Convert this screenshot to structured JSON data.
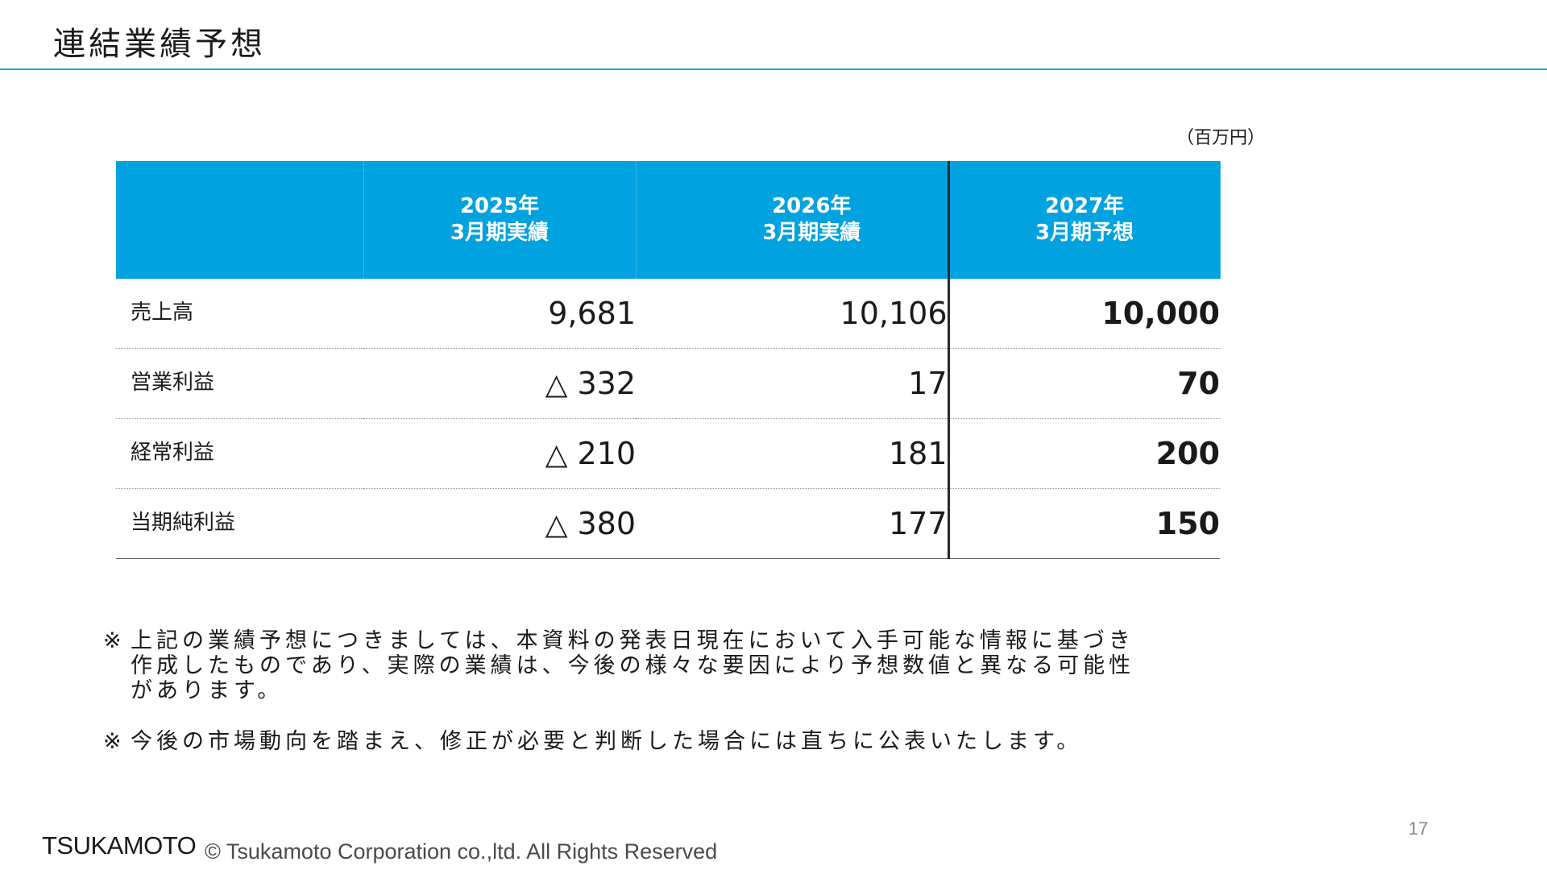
{
  "title": "連結業績予想",
  "unit": "（百万円）",
  "table": {
    "headers": [
      {
        "year": "2025年",
        "label": "3月期実績"
      },
      {
        "year": "2026年",
        "label": "3月期実績"
      },
      {
        "year": "2027年",
        "label": "3月期予想"
      }
    ],
    "rows": [
      {
        "label": "売上高",
        "fy2025": "9,681",
        "fy2025_negative": false,
        "fy2026": "10,106",
        "fy2027": "10,000"
      },
      {
        "label": "営業利益",
        "fy2025": "332",
        "fy2025_negative": true,
        "fy2026": "17",
        "fy2027": "70"
      },
      {
        "label": "経常利益",
        "fy2025": "210",
        "fy2025_negative": true,
        "fy2026": "181",
        "fy2027": "200"
      },
      {
        "label": "当期純利益",
        "fy2025": "380",
        "fy2025_negative": true,
        "fy2026": "177",
        "fy2027": "150"
      }
    ],
    "negative_mark": "△"
  },
  "notes": [
    {
      "mark": "※",
      "lines": [
        "上記の業績予想につきましては、本資料の発表日現在において入手可能な情報に基づき",
        "作成したものであり、実際の業績は、今後の様々な要因により予想数値と異なる可能性",
        "があります。"
      ]
    },
    {
      "mark": "※",
      "lines": [
        "今後の市場動向を踏まえ、修正が必要と判断した場合には直ちに公表いたします。"
      ]
    }
  ],
  "footer": {
    "logo": "TSUKAMOTO",
    "copyright": "© Tsukamoto Corporation co.,ltd. All Rights Reserved",
    "page": "17"
  },
  "colors": {
    "header_blue": "#00a2df",
    "rule_blue": "#1aa6d9"
  }
}
